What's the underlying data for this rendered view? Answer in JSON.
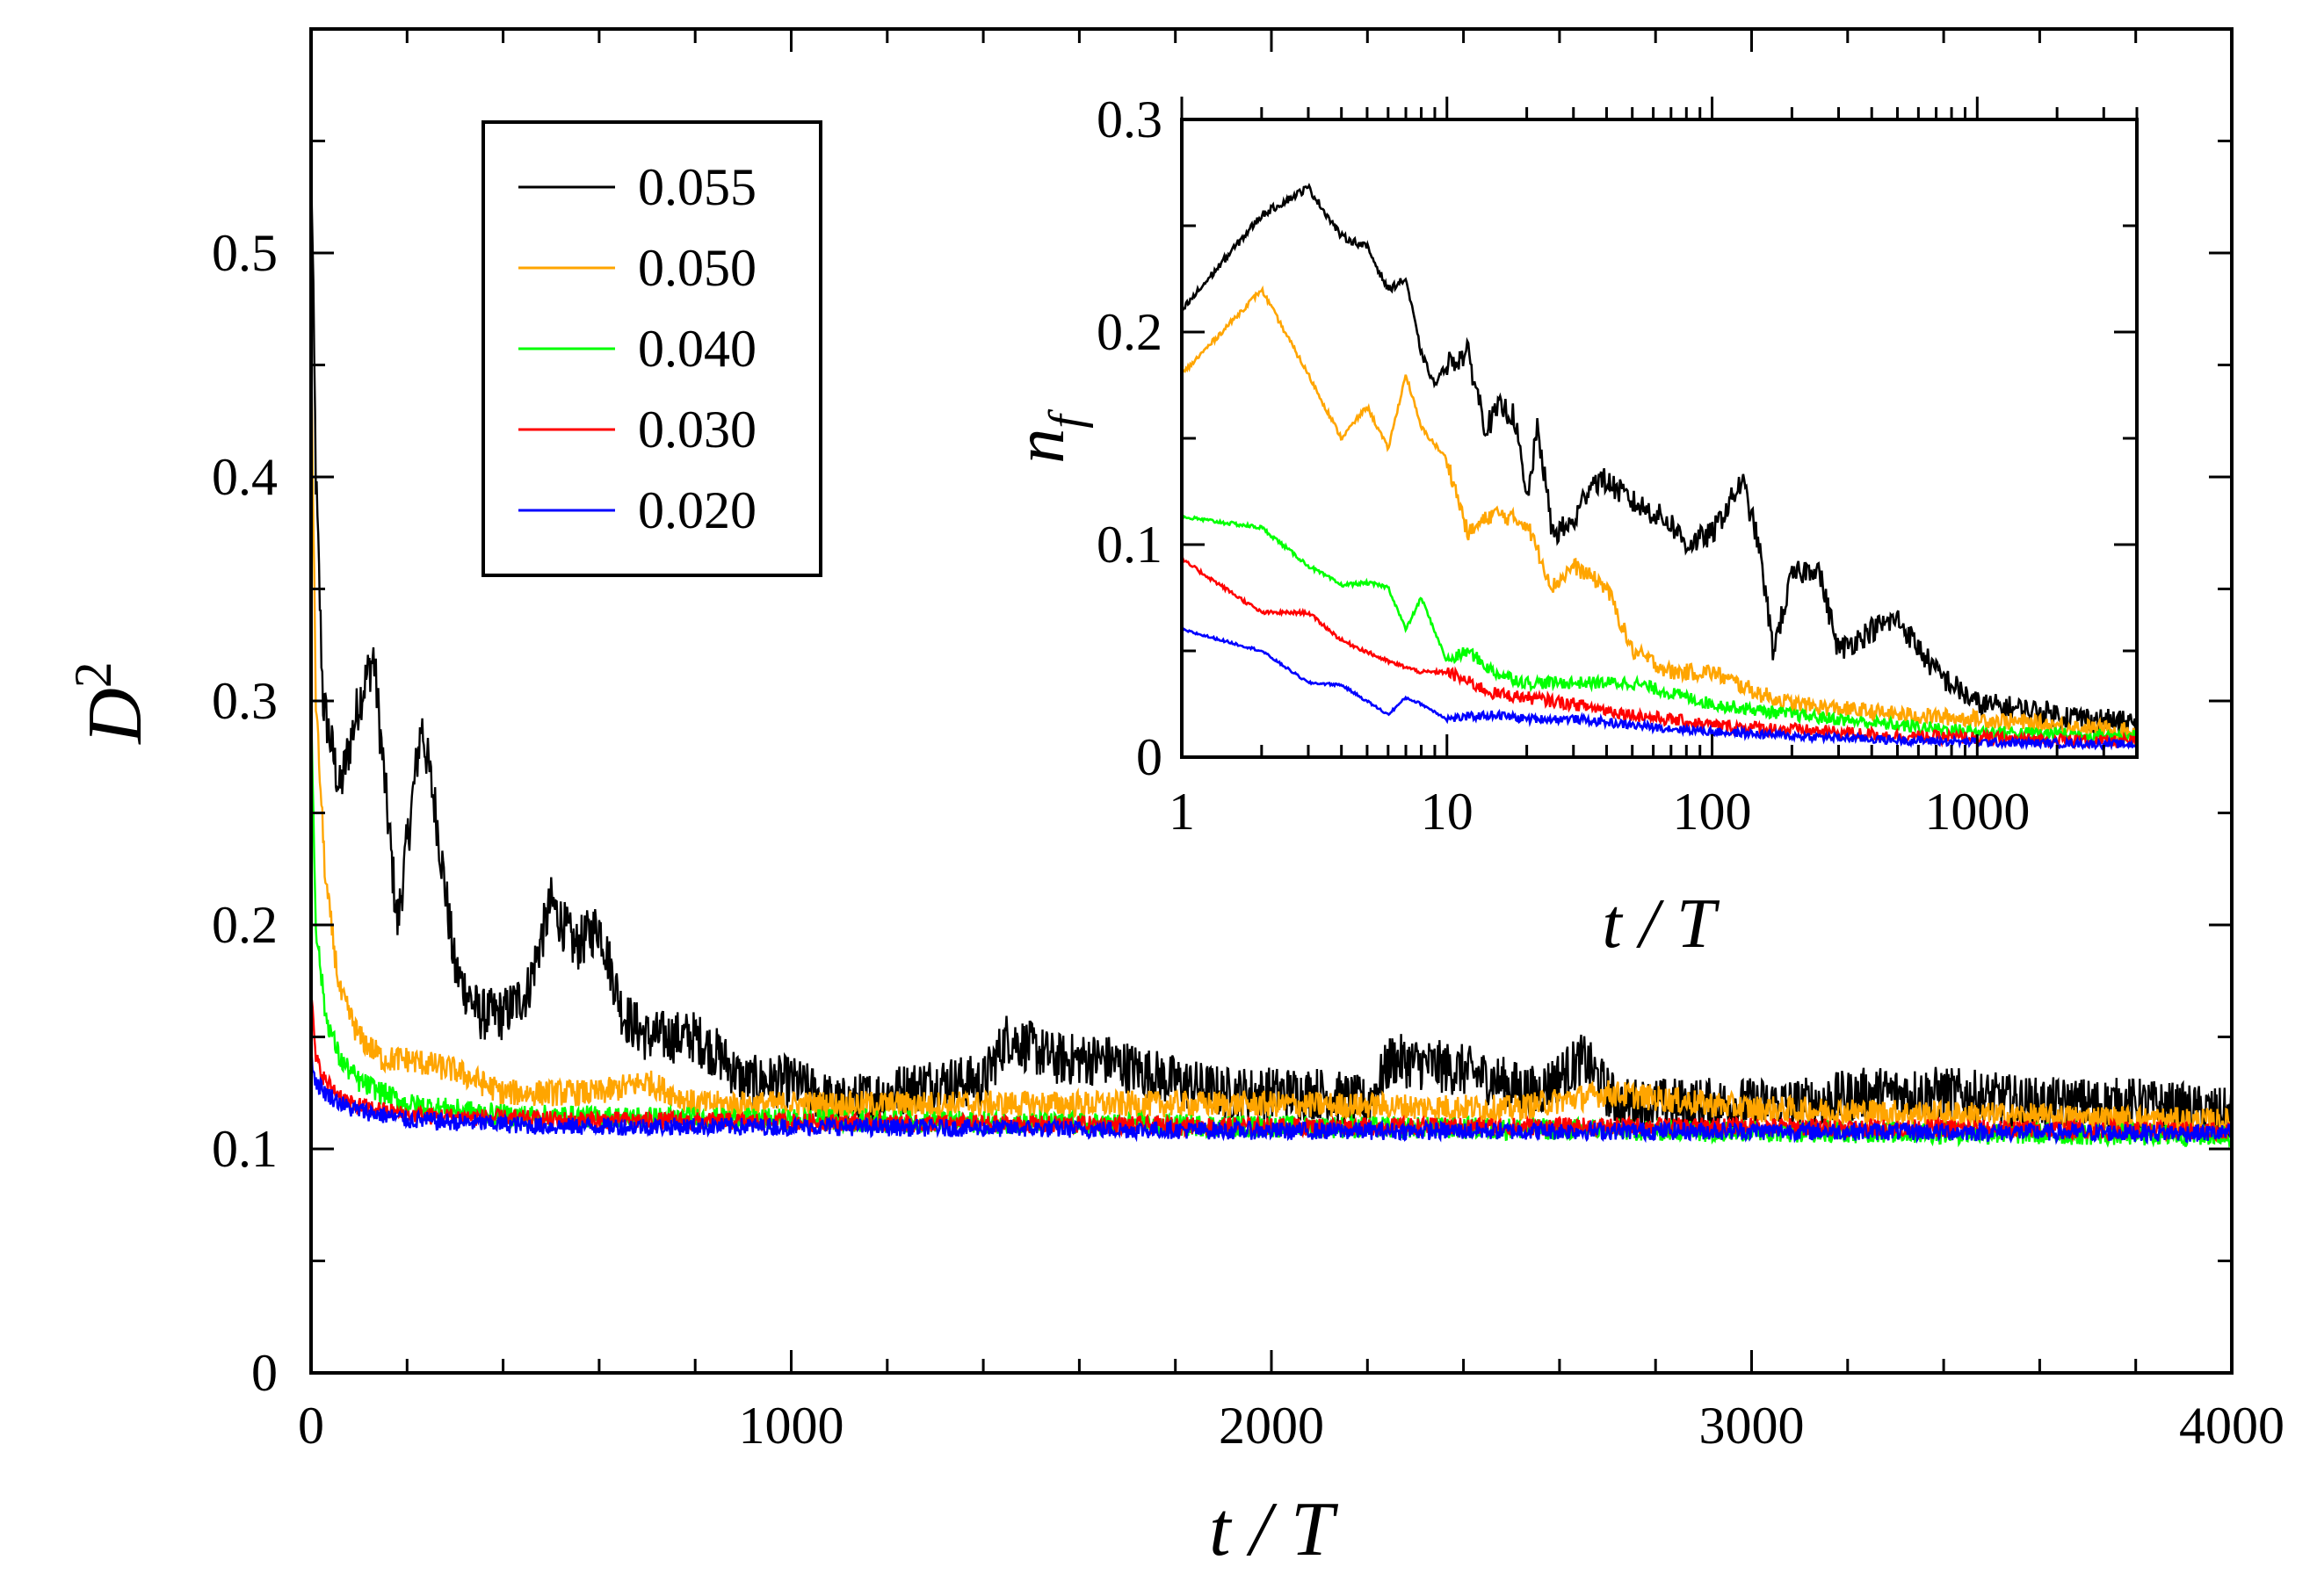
{
  "chart_data": [
    {
      "id": "main",
      "type": "line",
      "title": "",
      "xlabel": "t / T",
      "ylabel": "D",
      "ylabel_superscript": "2",
      "xlim": [
        0,
        4000
      ],
      "ylim": [
        0,
        0.6
      ],
      "xscale": "linear",
      "grid": false,
      "legend_position": "top-left",
      "x_ticks": [
        0,
        1000,
        2000,
        3000,
        4000
      ],
      "x_tick_labels": [
        "0",
        "1000",
        "2000",
        "3000",
        "4000"
      ],
      "y_ticks": [
        0,
        0.1,
        0.2,
        0.3,
        0.4,
        0.5
      ],
      "y_tick_labels": [
        "0",
        "0.1",
        "0.2",
        "0.3",
        "0.4",
        "0.5"
      ],
      "series": [
        {
          "name": "0.055",
          "color": "#000000",
          "noise": 0.012,
          "points": [
            [
              0,
              0.55
            ],
            [
              10,
              0.4
            ],
            [
              25,
              0.3
            ],
            [
              60,
              0.26
            ],
            [
              100,
              0.3
            ],
            [
              130,
              0.32
            ],
            [
              180,
              0.2
            ],
            [
              230,
              0.29
            ],
            [
              260,
              0.25
            ],
            [
              300,
              0.18
            ],
            [
              350,
              0.16
            ],
            [
              400,
              0.16
            ],
            [
              450,
              0.17
            ],
            [
              500,
              0.21
            ],
            [
              550,
              0.19
            ],
            [
              600,
              0.2
            ],
            [
              650,
              0.16
            ],
            [
              700,
              0.15
            ],
            [
              800,
              0.15
            ],
            [
              860,
              0.14
            ],
            [
              900,
              0.13
            ],
            [
              1000,
              0.13
            ],
            [
              1100,
              0.12
            ],
            [
              1200,
              0.125
            ],
            [
              1300,
              0.13
            ],
            [
              1400,
              0.13
            ],
            [
              1450,
              0.15
            ],
            [
              1550,
              0.14
            ],
            [
              1650,
              0.14
            ],
            [
              1800,
              0.13
            ],
            [
              1900,
              0.125
            ],
            [
              2100,
              0.125
            ],
            [
              2200,
              0.12
            ],
            [
              2250,
              0.14
            ],
            [
              2400,
              0.135
            ],
            [
              2550,
              0.125
            ],
            [
              2650,
              0.14
            ],
            [
              2720,
              0.12
            ],
            [
              2900,
              0.12
            ],
            [
              3100,
              0.12
            ],
            [
              3250,
              0.125
            ],
            [
              3400,
              0.125
            ],
            [
              3600,
              0.12
            ],
            [
              3800,
              0.12
            ],
            [
              4000,
              0.115
            ]
          ]
        },
        {
          "name": "0.050",
          "color": "#ffa500",
          "noise": 0.006,
          "points": [
            [
              0,
              0.46
            ],
            [
              10,
              0.3
            ],
            [
              30,
              0.22
            ],
            [
              60,
              0.17
            ],
            [
              100,
              0.15
            ],
            [
              150,
              0.14
            ],
            [
              200,
              0.14
            ],
            [
              300,
              0.135
            ],
            [
              400,
              0.125
            ],
            [
              500,
              0.125
            ],
            [
              600,
              0.125
            ],
            [
              700,
              0.13
            ],
            [
              800,
              0.12
            ],
            [
              1000,
              0.12
            ],
            [
              1500,
              0.12
            ],
            [
              2000,
              0.12
            ],
            [
              2500,
              0.118
            ],
            [
              2700,
              0.125
            ],
            [
              3000,
              0.118
            ],
            [
              3500,
              0.115
            ],
            [
              4000,
              0.112
            ]
          ]
        },
        {
          "name": "0.040",
          "color": "#00ff00",
          "noise": 0.005,
          "points": [
            [
              0,
              0.3
            ],
            [
              10,
              0.2
            ],
            [
              30,
              0.16
            ],
            [
              60,
              0.14
            ],
            [
              100,
              0.13
            ],
            [
              200,
              0.12
            ],
            [
              400,
              0.115
            ],
            [
              1000,
              0.113
            ],
            [
              2000,
              0.11
            ],
            [
              3000,
              0.108
            ],
            [
              4000,
              0.106
            ]
          ]
        },
        {
          "name": "0.030",
          "color": "#ff0000",
          "noise": 0.004,
          "points": [
            [
              0,
              0.17
            ],
            [
              10,
              0.14
            ],
            [
              30,
              0.13
            ],
            [
              80,
              0.12
            ],
            [
              200,
              0.115
            ],
            [
              500,
              0.113
            ],
            [
              1000,
              0.112
            ],
            [
              2000,
              0.11
            ],
            [
              3000,
              0.11
            ],
            [
              4000,
              0.108
            ]
          ]
        },
        {
          "name": "0.020",
          "color": "#0000ff",
          "noise": 0.004,
          "points": [
            [
              0,
              0.14
            ],
            [
              10,
              0.13
            ],
            [
              30,
              0.125
            ],
            [
              80,
              0.118
            ],
            [
              200,
              0.113
            ],
            [
              500,
              0.11
            ],
            [
              1000,
              0.11
            ],
            [
              2000,
              0.108
            ],
            [
              3000,
              0.108
            ],
            [
              4000,
              0.107
            ]
          ]
        }
      ]
    },
    {
      "id": "inset",
      "type": "line",
      "title": "",
      "xlabel": "t / T",
      "ylabel": "n",
      "ylabel_subscript": "f",
      "xlim": [
        1,
        4000
      ],
      "ylim": [
        0,
        0.3
      ],
      "xscale": "log",
      "grid": false,
      "x_ticks": [
        1,
        10,
        100,
        1000
      ],
      "x_tick_labels": [
        "1",
        "10",
        "100",
        "1000"
      ],
      "y_ticks": [
        0,
        0.1,
        0.2,
        0.3
      ],
      "y_tick_labels": [
        "0",
        "0.1",
        "0.2",
        "0.3"
      ],
      "series": [
        {
          "name": "0.055",
          "color": "#000000",
          "noise": 0.006,
          "points": [
            [
              1,
              0.21
            ],
            [
              2,
              0.255
            ],
            [
              3,
              0.268
            ],
            [
              4,
              0.245
            ],
            [
              5,
              0.24
            ],
            [
              6,
              0.22
            ],
            [
              7,
              0.225
            ],
            [
              8,
              0.19
            ],
            [
              9,
              0.175
            ],
            [
              10,
              0.185
            ],
            [
              12,
              0.19
            ],
            [
              14,
              0.155
            ],
            [
              16,
              0.165
            ],
            [
              18,
              0.16
            ],
            [
              20,
              0.12
            ],
            [
              22,
              0.155
            ],
            [
              25,
              0.105
            ],
            [
              30,
              0.11
            ],
            [
              35,
              0.13
            ],
            [
              40,
              0.13
            ],
            [
              50,
              0.12
            ],
            [
              60,
              0.115
            ],
            [
              70,
              0.11
            ],
            [
              80,
              0.1
            ],
            [
              100,
              0.105
            ],
            [
              130,
              0.13
            ],
            [
              150,
              0.1
            ],
            [
              170,
              0.05
            ],
            [
              200,
              0.085
            ],
            [
              250,
              0.09
            ],
            [
              300,
              0.05
            ],
            [
              400,
              0.06
            ],
            [
              500,
              0.065
            ],
            [
              700,
              0.04
            ],
            [
              1000,
              0.025
            ],
            [
              2000,
              0.02
            ],
            [
              4000,
              0.015
            ]
          ]
        },
        {
          "name": "0.050",
          "color": "#ffa500",
          "noise": 0.004,
          "points": [
            [
              1,
              0.18
            ],
            [
              2,
              0.22
            ],
            [
              3,
              0.18
            ],
            [
              4,
              0.15
            ],
            [
              5,
              0.165
            ],
            [
              6,
              0.145
            ],
            [
              7,
              0.18
            ],
            [
              8,
              0.155
            ],
            [
              10,
              0.14
            ],
            [
              12,
              0.105
            ],
            [
              15,
              0.115
            ],
            [
              20,
              0.11
            ],
            [
              25,
              0.08
            ],
            [
              30,
              0.09
            ],
            [
              40,
              0.08
            ],
            [
              50,
              0.05
            ],
            [
              70,
              0.04
            ],
            [
              100,
              0.04
            ],
            [
              150,
              0.03
            ],
            [
              200,
              0.025
            ],
            [
              500,
              0.02
            ],
            [
              1000,
              0.018
            ],
            [
              4000,
              0.012
            ]
          ]
        },
        {
          "name": "0.040",
          "color": "#00ff00",
          "noise": 0.003,
          "points": [
            [
              1,
              0.113
            ],
            [
              2,
              0.108
            ],
            [
              3,
              0.09
            ],
            [
              4,
              0.081
            ],
            [
              5,
              0.082
            ],
            [
              6,
              0.08
            ],
            [
              7,
              0.06
            ],
            [
              8,
              0.075
            ],
            [
              10,
              0.045
            ],
            [
              12,
              0.05
            ],
            [
              15,
              0.04
            ],
            [
              20,
              0.035
            ],
            [
              30,
              0.035
            ],
            [
              50,
              0.035
            ],
            [
              100,
              0.025
            ],
            [
              200,
              0.02
            ],
            [
              500,
              0.015
            ],
            [
              1000,
              0.012
            ],
            [
              4000,
              0.01
            ]
          ]
        },
        {
          "name": "0.030",
          "color": "#ff0000",
          "noise": 0.003,
          "points": [
            [
              1,
              0.093
            ],
            [
              2,
              0.068
            ],
            [
              3,
              0.068
            ],
            [
              4,
              0.055
            ],
            [
              6,
              0.045
            ],
            [
              8,
              0.04
            ],
            [
              10,
              0.04
            ],
            [
              15,
              0.03
            ],
            [
              20,
              0.028
            ],
            [
              30,
              0.025
            ],
            [
              50,
              0.02
            ],
            [
              100,
              0.015
            ],
            [
              200,
              0.013
            ],
            [
              500,
              0.01
            ],
            [
              1000,
              0.009
            ],
            [
              4000,
              0.007
            ]
          ]
        },
        {
          "name": "0.020",
          "color": "#0000ff",
          "noise": 0.002,
          "points": [
            [
              1,
              0.06
            ],
            [
              2,
              0.05
            ],
            [
              3,
              0.035
            ],
            [
              4,
              0.034
            ],
            [
              6,
              0.02
            ],
            [
              7,
              0.028
            ],
            [
              8,
              0.025
            ],
            [
              10,
              0.018
            ],
            [
              15,
              0.02
            ],
            [
              20,
              0.018
            ],
            [
              30,
              0.018
            ],
            [
              50,
              0.015
            ],
            [
              100,
              0.012
            ],
            [
              200,
              0.01
            ],
            [
              500,
              0.008
            ],
            [
              1000,
              0.007
            ],
            [
              4000,
              0.006
            ]
          ]
        }
      ]
    }
  ],
  "legend": {
    "entries": [
      {
        "label": "0.055",
        "color": "#000000"
      },
      {
        "label": "0.050",
        "color": "#ffa500"
      },
      {
        "label": "0.040",
        "color": "#00ff00"
      },
      {
        "label": "0.030",
        "color": "#ff0000"
      },
      {
        "label": "0.020",
        "color": "#0000ff"
      }
    ]
  }
}
